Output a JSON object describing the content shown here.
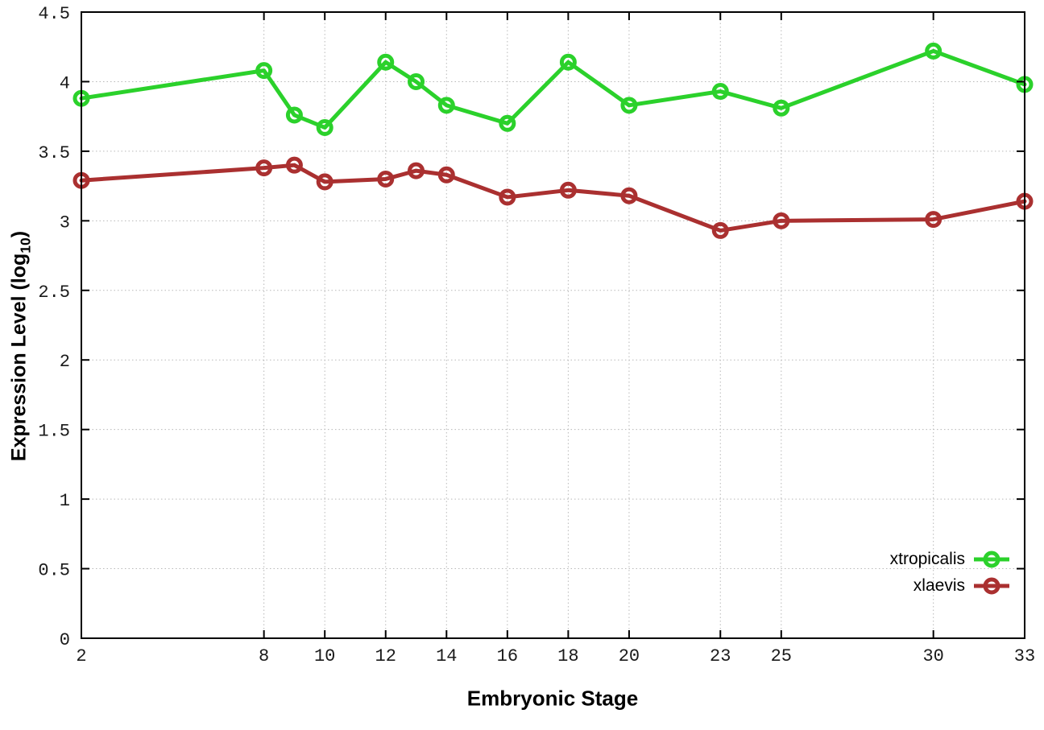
{
  "labels": {
    "xlabel": "Embryonic Stage",
    "ylabel_main": "Expression Level (log",
    "ylabel_sub": "10",
    "ylabel_close": ")"
  },
  "legend": {
    "items": [
      {
        "label": "xtropicalis"
      },
      {
        "label": "xlaevis"
      }
    ]
  },
  "chart_data": {
    "type": "line",
    "title": "",
    "xlabel": "Embryonic Stage",
    "ylabel": "Expression Level (log10)",
    "x": [
      2,
      8,
      9,
      10,
      12,
      13,
      14,
      16,
      18,
      20,
      23,
      25,
      30,
      33
    ],
    "series": [
      {
        "name": "xtropicalis",
        "color": "#2bd12b",
        "values": [
          3.88,
          4.08,
          3.76,
          3.67,
          4.14,
          4.0,
          3.83,
          3.7,
          4.14,
          3.83,
          3.93,
          3.81,
          4.22,
          3.98
        ]
      },
      {
        "name": "xlaevis",
        "color": "#aa3030",
        "values": [
          3.29,
          3.38,
          3.4,
          3.28,
          3.3,
          3.36,
          3.33,
          3.17,
          3.22,
          3.18,
          2.93,
          3.0,
          3.01,
          3.14
        ]
      }
    ],
    "xticks": [
      2,
      8,
      10,
      12,
      14,
      16,
      18,
      20,
      23,
      25,
      30,
      33
    ],
    "yticks": [
      0,
      0.5,
      1,
      1.5,
      2,
      2.5,
      3,
      3.5,
      4,
      4.5
    ],
    "ytick_labels": [
      "0",
      "0.5",
      "1",
      "1.5",
      "2",
      "2.5",
      "3",
      "3.5",
      "4",
      "4.5"
    ],
    "xlim": [
      2,
      33
    ],
    "ylim": [
      0,
      4.5
    ],
    "grid": true,
    "grid_color": "#b8b8b8",
    "axis_color": "#000000",
    "legend_position": "inside-bottom-right",
    "marker": "open-circle",
    "line_width": 5,
    "marker_radius": 8
  }
}
